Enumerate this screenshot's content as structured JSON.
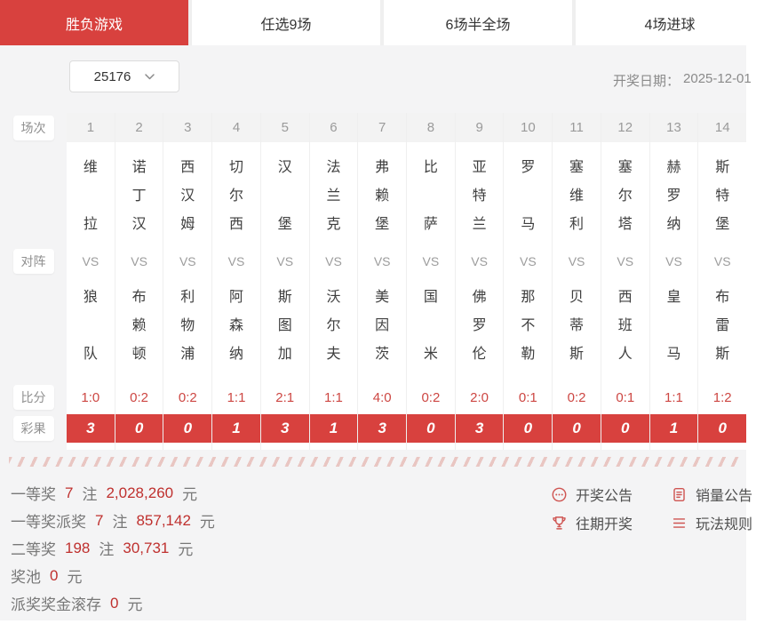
{
  "tabs": [
    {
      "label": "胜负游戏",
      "active": true
    },
    {
      "label": "任选9场",
      "active": false
    },
    {
      "label": "6场半全场",
      "active": false
    },
    {
      "label": "4场进球",
      "active": false
    }
  ],
  "controls": {
    "period": "25176",
    "date_label": "开奖日期：",
    "date_value": "2025-12-01"
  },
  "table": {
    "row_labels": {
      "match": "场次",
      "versus": "对阵",
      "score": "比分",
      "result": "彩果"
    },
    "vs_label": "VS",
    "matches": [
      {
        "no": "1",
        "home": "维拉",
        "away": "狼队",
        "score": "1:0",
        "result": "3"
      },
      {
        "no": "2",
        "home": "诺丁汉",
        "away": "布赖顿",
        "score": "0:2",
        "result": "0"
      },
      {
        "no": "3",
        "home": "西汉姆",
        "away": "利物浦",
        "score": "0:2",
        "result": "0"
      },
      {
        "no": "4",
        "home": "切尔西",
        "away": "阿森纳",
        "score": "1:1",
        "result": "1"
      },
      {
        "no": "5",
        "home": "汉堡",
        "away": "斯图加",
        "score": "2:1",
        "result": "3"
      },
      {
        "no": "6",
        "home": "法兰克",
        "away": "沃尔夫",
        "score": "1:1",
        "result": "1"
      },
      {
        "no": "7",
        "home": "弗赖堡",
        "away": "美因茨",
        "score": "4:0",
        "result": "3"
      },
      {
        "no": "8",
        "home": "比萨",
        "away": "国米",
        "score": "0:2",
        "result": "0"
      },
      {
        "no": "9",
        "home": "亚特兰",
        "away": "佛罗伦",
        "score": "2:0",
        "result": "3"
      },
      {
        "no": "10",
        "home": "罗马",
        "away": "那不勒",
        "score": "0:1",
        "result": "0"
      },
      {
        "no": "11",
        "home": "塞维利",
        "away": "贝蒂斯",
        "score": "0:2",
        "result": "0"
      },
      {
        "no": "12",
        "home": "塞尔塔",
        "away": "西班人",
        "score": "0:1",
        "result": "0"
      },
      {
        "no": "13",
        "home": "赫罗纳",
        "away": "皇马",
        "score": "1:1",
        "result": "1"
      },
      {
        "no": "14",
        "home": "斯特堡",
        "away": "布雷斯",
        "score": "1:2",
        "result": "0"
      }
    ]
  },
  "prizes": [
    {
      "label": "一等奖",
      "count": "7",
      "note": "注",
      "amount": "2,028,260",
      "yuan": "元"
    },
    {
      "label": "一等奖派奖",
      "count": "7",
      "note": "注",
      "amount": "857,142",
      "yuan": "元"
    },
    {
      "label": "二等奖",
      "count": "198",
      "note": "注",
      "amount": "30,731",
      "yuan": "元"
    },
    {
      "label": "奖池",
      "count": "",
      "note": "",
      "amount": "0",
      "yuan": "元"
    },
    {
      "label": "派奖奖金滚存",
      "count": "",
      "note": "",
      "amount": "0",
      "yuan": "元"
    }
  ],
  "links": {
    "draw_announcement": "开奖公告",
    "past_draws": "往期开奖",
    "sales_announcement": "销量公告",
    "game_rules": "玩法规则"
  },
  "colors": {
    "accent": "#d8413e",
    "score_red": "#cd4743",
    "prize_red": "#bf302e",
    "hatch_pink": "#e9c6c2",
    "page_bg": "#f4f4f5"
  }
}
